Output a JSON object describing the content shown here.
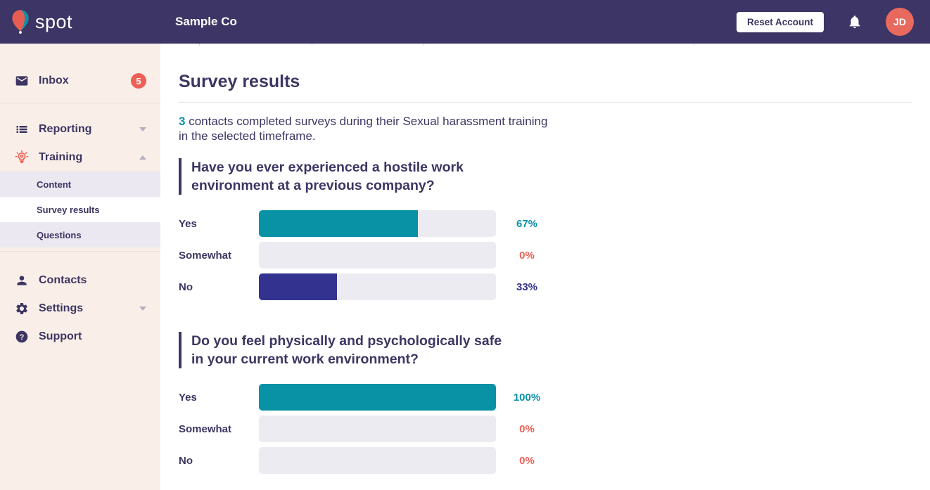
{
  "header": {
    "brand": "spot",
    "company_name": "Sample Co",
    "reset_button_label": "Reset Account",
    "avatar_initials": "JD"
  },
  "sidebar": {
    "inbox_label": "Inbox",
    "inbox_badge": "5",
    "reporting_label": "Reporting",
    "training_label": "Training",
    "training_submenu": {
      "content_label": "Content",
      "survey_results_label": "Survey results",
      "questions_label": "Questions",
      "active_item": "Survey results"
    },
    "contacts_label": "Contacts",
    "settings_label": "Settings",
    "support_label": "Support"
  },
  "main": {
    "page_title": "Survey results",
    "intro": {
      "count": "3",
      "text_after_count": " contacts completed surveys during their Sexual harassment training in the selected timeframe."
    }
  },
  "chart_data": [
    {
      "type": "bar",
      "orientation": "horizontal",
      "title": "Have you ever experienced a hostile work environment at a previous company?",
      "categories": [
        "Yes",
        "Somewhat",
        "No"
      ],
      "values": [
        67,
        0,
        33
      ],
      "value_labels": [
        "67%",
        "0%",
        "33%"
      ],
      "xlim": [
        0,
        100
      ],
      "bar_colors": [
        "#0991a6",
        "#edebf2",
        "#34328f"
      ],
      "value_label_colors": [
        "#0991a6",
        "#ee5f55",
        "#34328f"
      ],
      "track_color": "#edebf2",
      "grid": false,
      "legend": false
    },
    {
      "type": "bar",
      "orientation": "horizontal",
      "title": "Do you feel physically and psychologically safe in your current work environment?",
      "categories": [
        "Yes",
        "Somewhat",
        "No"
      ],
      "values": [
        100,
        0,
        0
      ],
      "value_labels": [
        "100%",
        "0%",
        "0%"
      ],
      "xlim": [
        0,
        100
      ],
      "bar_colors": [
        "#0991a6",
        "#edebf2",
        "#edebf2"
      ],
      "value_label_colors": [
        "#0991a6",
        "#ee5f55",
        "#ee5f55"
      ],
      "track_color": "#edebf2",
      "grid": false,
      "legend": false
    }
  ],
  "colors": {
    "header_bg": "#3c3566",
    "sidebar_bg": "#faefe8",
    "submenu_bg": "#ebe8f1",
    "text_primary": "#3d3663",
    "coral": "#ee5f55",
    "teal": "#0991a6",
    "indigo": "#34328f",
    "bar_track": "#edebf2"
  }
}
